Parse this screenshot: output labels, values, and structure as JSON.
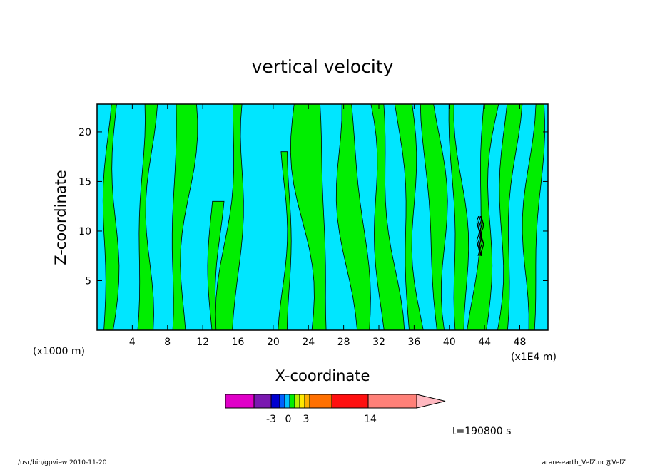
{
  "chart_data": {
    "type": "heatmap",
    "title": "vertical velocity",
    "xlabel": "X-coordinate",
    "ylabel": "Z-coordinate",
    "x_unit_left": "(x1000 m)",
    "x_unit_right": "(x1E4 m)",
    "xlim": [
      0,
      51.2
    ],
    "ylim": [
      0,
      22.8
    ],
    "x_ticks": [
      4,
      8,
      12,
      16,
      20,
      24,
      28,
      32,
      36,
      40,
      44,
      48
    ],
    "y_ticks": [
      5,
      10,
      15,
      20
    ],
    "background_level_color": "#00e6ff",
    "positive_level_color": "#00ee00",
    "contour_color": "#000000",
    "updraft_bands": [
      {
        "x_center": 1.5,
        "z_top": 22.8,
        "width": 1.4,
        "tilt": 0.4
      },
      {
        "x_center": 5.5,
        "z_top": 22.8,
        "width": 1.6,
        "tilt": 0.6
      },
      {
        "x_center": 9.5,
        "z_top": 22.8,
        "width": 2.2,
        "tilt": 1.0
      },
      {
        "x_center": 13.5,
        "z_top": 13.0,
        "width": 1.2,
        "tilt": 0.5
      },
      {
        "x_center": 15.5,
        "z_top": 22.8,
        "width": 2.0,
        "tilt": 1.6
      },
      {
        "x_center": 21.5,
        "z_top": 18.0,
        "width": 1.0,
        "tilt": 0.2
      },
      {
        "x_center": 24.5,
        "z_top": 22.8,
        "width": 3.2,
        "tilt": -1.6
      },
      {
        "x_center": 29.0,
        "z_top": 22.8,
        "width": 2.6,
        "tilt": -2.0
      },
      {
        "x_center": 32.5,
        "z_top": 22.8,
        "width": 2.2,
        "tilt": -1.8
      },
      {
        "x_center": 35.5,
        "z_top": 22.8,
        "width": 1.8,
        "tilt": -1.2
      },
      {
        "x_center": 38.5,
        "z_top": 22.8,
        "width": 2.0,
        "tilt": -1.4
      },
      {
        "x_center": 41.0,
        "z_top": 22.8,
        "width": 1.4,
        "tilt": -1.0
      },
      {
        "x_center": 44.0,
        "z_top": 22.8,
        "width": 2.0,
        "tilt": 1.4
      },
      {
        "x_center": 46.5,
        "z_top": 22.8,
        "width": 1.6,
        "tilt": 1.2
      },
      {
        "x_center": 49.5,
        "z_top": 22.8,
        "width": 1.6,
        "tilt": 1.0
      }
    ],
    "strong_updraft": {
      "x": 43.5,
      "z_min": 7.5,
      "z_max": 11.5
    },
    "colorbar": {
      "levels": [
        {
          "color": "#e000c8"
        },
        {
          "color": "#7a18b0"
        },
        {
          "color": "#0000d0"
        },
        {
          "color": "#0060ff"
        },
        {
          "color": "#00c0ff"
        },
        {
          "color": "#00ee00"
        },
        {
          "color": "#b8f000"
        },
        {
          "color": "#ffe800"
        },
        {
          "color": "#ffb000"
        },
        {
          "color": "#ff7000"
        },
        {
          "color": "#ff1010"
        },
        {
          "color": "#ff8078"
        },
        {
          "color": "#ffb8c0"
        }
      ],
      "tick_labels": [
        "-3",
        "0",
        "3",
        "14"
      ]
    },
    "time_label": "t=190800 s"
  },
  "footer": {
    "left": "/usr/bin/gpview   2010-11-20",
    "right": "arare-earth_VelZ.nc@VelZ"
  }
}
